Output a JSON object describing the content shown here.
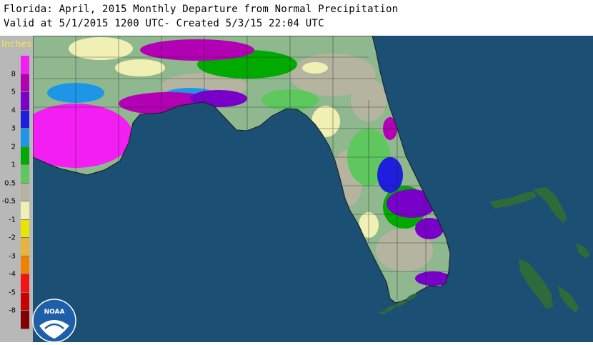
{
  "header": {
    "title": "Florida: April, 2015 Monthly Departure from Normal Precipitation",
    "subtitle": "Valid at 5/1/2015 1200 UTC- Created 5/3/15 22:04 UTC"
  },
  "legend": {
    "title": "Inches",
    "labels": [
      "8",
      "5",
      "4",
      "3",
      "2",
      "1",
      "0.5",
      "-0.5",
      "-1",
      "-2",
      "-3",
      "-4",
      "-5",
      "-8"
    ],
    "colors": [
      "#f21ef2",
      "#b400b4",
      "#7800c8",
      "#1e1edc",
      "#1e96e6",
      "#00aa00",
      "#5ec85e",
      "#b4b4a0",
      "#f0f0b4",
      "#e6e600",
      "#e6b43c",
      "#f08200",
      "#f01414",
      "#c80000",
      "#820000"
    ]
  },
  "map": {
    "ocean_color": "#1b4f73",
    "land_color": "#8fb88f",
    "island_color": "#2f6b3a"
  },
  "logo": {
    "text": "NOAA"
  }
}
